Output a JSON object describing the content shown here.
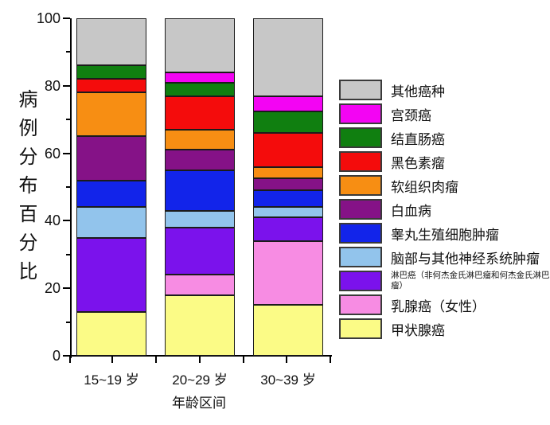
{
  "chart_data": {
    "type": "bar",
    "subtype": "stacked-percentage",
    "title": "",
    "xlabel": "年龄区间",
    "ylabel": "病例分布百分比",
    "ylim": [
      0,
      100
    ],
    "y_major_ticks": [
      0,
      20,
      40,
      60,
      80,
      100
    ],
    "y_minor_ticks": [
      10,
      30,
      50,
      70,
      90
    ],
    "grid": "off",
    "legend_position": "right",
    "categories": [
      "15~19 岁",
      "20~29 岁",
      "30~39 岁"
    ],
    "series": [
      {
        "name": "甲状腺癌",
        "color": "#FBFB86",
        "values": [
          13,
          18,
          15
        ]
      },
      {
        "name": "乳腺癌（女性）",
        "color": "#F78CE3",
        "values": [
          0,
          6,
          19
        ]
      },
      {
        "name": "淋巴癌（非何杰金氏淋巴瘤和何杰金氏淋巴瘤）",
        "color": "#7B12EC",
        "values": [
          22,
          14,
          7
        ]
      },
      {
        "name": "脑部与其他神经系统肿瘤",
        "color": "#92C4EC",
        "values": [
          9,
          5,
          3
        ]
      },
      {
        "name": "睾丸生殖细胞肿瘤",
        "color": "#1224EA",
        "values": [
          8,
          12,
          5
        ]
      },
      {
        "name": "白血病",
        "color": "#851287",
        "values": [
          13,
          6,
          3.5
        ]
      },
      {
        "name": "软组织肉瘤",
        "color": "#F78E13",
        "values": [
          13,
          6,
          3.5
        ]
      },
      {
        "name": "黑色素瘤",
        "color": "#F40C0C",
        "values": [
          4,
          10,
          10
        ]
      },
      {
        "name": "结直肠癌",
        "color": "#107F10",
        "values": [
          4,
          4,
          6.5
        ]
      },
      {
        "name": "宫颈癌",
        "color": "#F304F3",
        "values": [
          0,
          3,
          4.5
        ]
      },
      {
        "name": "其他癌种",
        "color": "#C7C7C7",
        "values": [
          14,
          16,
          23
        ]
      }
    ]
  }
}
